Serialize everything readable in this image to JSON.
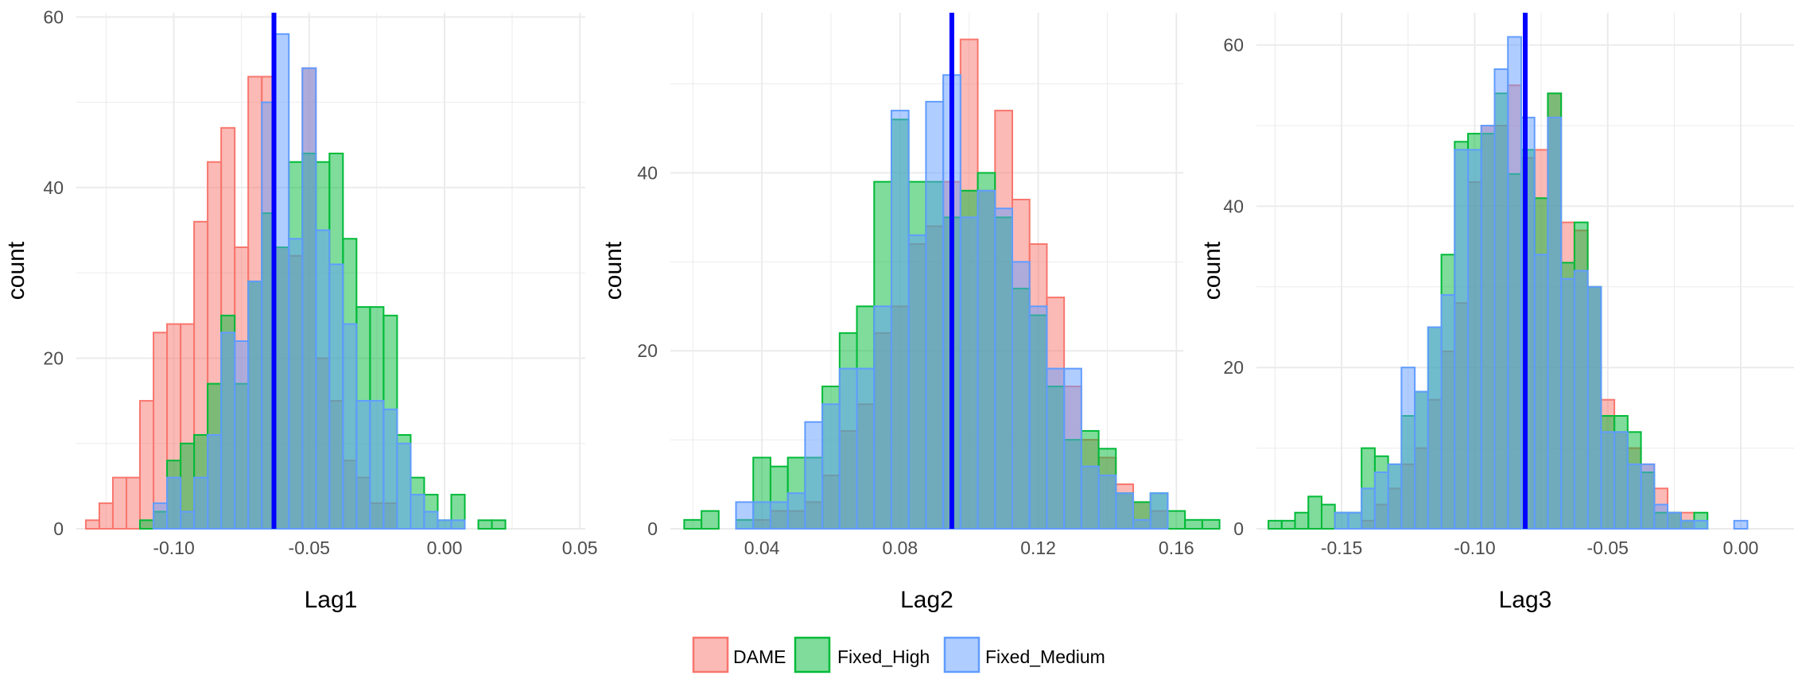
{
  "colors": {
    "DAME": {
      "fill": "#F8766D",
      "stroke": "#F8766D"
    },
    "Fixed_High": {
      "fill": "#00BA38",
      "stroke": "#00BA38"
    },
    "Fixed_Medium": {
      "fill": "#619CFF",
      "stroke": "#619CFF"
    },
    "reference_line": "#0000FF",
    "grid": "#EBEBEB"
  },
  "legend": {
    "placement": "bottom",
    "items": [
      {
        "key": "DAME",
        "label": "DAME"
      },
      {
        "key": "Fixed_High",
        "label": "Fixed_High"
      },
      {
        "key": "Fixed_Medium",
        "label": "Fixed_Medium"
      }
    ]
  },
  "chart_data": [
    {
      "type": "histogram",
      "xlabel": "Lag1",
      "ylabel": "count",
      "xlim": [
        -0.136,
        0.052
      ],
      "ylim": [
        0,
        60.5
      ],
      "x_ticks": [
        -0.1,
        -0.05,
        0.0,
        0.05
      ],
      "x_tick_labels": [
        "-0.10",
        "-0.05",
        "0.00",
        "0.05"
      ],
      "y_ticks": [
        0,
        20,
        40,
        60
      ],
      "y_tick_labels": [
        "0",
        "20",
        "40",
        "60"
      ],
      "grid": true,
      "bin_start": -0.1325,
      "bin_width": 0.005,
      "reference_line": -0.063,
      "series": [
        {
          "name": "DAME",
          "counts": [
            1,
            3,
            6,
            6,
            15,
            23,
            24,
            24,
            36,
            43,
            47,
            33,
            53,
            53,
            33,
            32,
            54,
            20,
            15,
            8,
            6,
            3,
            3,
            0,
            0,
            0,
            0,
            0,
            0,
            0,
            0,
            0,
            0,
            0,
            0
          ]
        },
        {
          "name": "Fixed_High",
          "counts": [
            0,
            0,
            0,
            0,
            1,
            2,
            8,
            10,
            11,
            17,
            25,
            17,
            29,
            37,
            33,
            43,
            44,
            43,
            44,
            34,
            26,
            26,
            25,
            11,
            6,
            4,
            1,
            4,
            0,
            1,
            1,
            0,
            0,
            0,
            0
          ]
        },
        {
          "name": "Fixed_Medium",
          "counts": [
            0,
            0,
            0,
            0,
            0,
            3,
            6,
            2,
            6,
            11,
            23,
            22,
            29,
            50,
            58,
            34,
            54,
            35,
            31,
            24,
            15,
            15,
            14,
            10,
            4,
            2,
            1,
            1,
            0,
            0,
            0,
            0,
            0,
            0,
            0
          ]
        }
      ]
    },
    {
      "type": "histogram",
      "xlabel": "Lag2",
      "ylabel": "count",
      "xlim": [
        0.0135,
        0.162
      ],
      "ylim": [
        0,
        58
      ],
      "x_ticks": [
        0.04,
        0.08,
        0.12,
        0.16
      ],
      "x_tick_labels": [
        "0.04",
        "0.08",
        "0.12",
        "0.16"
      ],
      "y_ticks": [
        0,
        20,
        40
      ],
      "y_tick_labels": [
        "0",
        "20",
        "40"
      ],
      "grid": true,
      "bin_start": 0.0175,
      "bin_width": 0.005,
      "reference_line": 0.095,
      "series": [
        {
          "name": "DAME",
          "counts": [
            0,
            0,
            0,
            0,
            1,
            2,
            2,
            3,
            6,
            11,
            14,
            22,
            25,
            32,
            34,
            39,
            55,
            38,
            47,
            37,
            32,
            26,
            16,
            10,
            8,
            5,
            3,
            2,
            0,
            0,
            0
          ]
        },
        {
          "name": "Fixed_High",
          "counts": [
            1,
            2,
            0,
            1,
            8,
            7,
            8,
            8,
            16,
            22,
            25,
            39,
            46,
            39,
            39,
            35,
            38,
            40,
            35,
            27,
            24,
            16,
            10,
            11,
            9,
            4,
            3,
            4,
            2,
            1,
            1
          ]
        },
        {
          "name": "Fixed_Medium",
          "counts": [
            0,
            0,
            0,
            3,
            3,
            3,
            4,
            12,
            14,
            18,
            18,
            25,
            47,
            33,
            48,
            51,
            35,
            38,
            36,
            30,
            25,
            18,
            18,
            7,
            6,
            4,
            1,
            4,
            0,
            0,
            0
          ]
        }
      ]
    },
    {
      "type": "histogram",
      "xlabel": "Lag3",
      "ylabel": "count",
      "xlim": [
        -0.182,
        0.02
      ],
      "ylim": [
        0,
        64
      ],
      "x_ticks": [
        -0.15,
        -0.1,
        -0.05,
        0.0
      ],
      "x_tick_labels": [
        "-0.15",
        "-0.10",
        "-0.05",
        "0.00"
      ],
      "y_ticks": [
        0,
        20,
        40,
        60
      ],
      "y_tick_labels": [
        "0",
        "20",
        "40",
        "60"
      ],
      "grid": true,
      "bin_start": -0.1775,
      "bin_width": 0.005,
      "reference_line": -0.081,
      "series": [
        {
          "name": "DAME",
          "counts": [
            0,
            0,
            0,
            0,
            0,
            0,
            0,
            1,
            3,
            5,
            8,
            10,
            16,
            22,
            28,
            43,
            50,
            50,
            55,
            46,
            47,
            54,
            38,
            37,
            30,
            16,
            12,
            10,
            8,
            5,
            2,
            2,
            0,
            0,
            0,
            0
          ]
        },
        {
          "name": "Fixed_High",
          "counts": [
            1,
            1,
            2,
            4,
            3,
            2,
            2,
            10,
            9,
            8,
            14,
            17,
            25,
            34,
            48,
            49,
            49,
            54,
            44,
            47,
            41,
            54,
            33,
            38,
            30,
            14,
            14,
            12,
            7,
            2,
            2,
            1,
            2,
            0,
            0,
            0
          ]
        },
        {
          "name": "Fixed_Medium",
          "counts": [
            0,
            0,
            0,
            0,
            0,
            2,
            2,
            5,
            7,
            8,
            20,
            17,
            25,
            29,
            47,
            47,
            50,
            57,
            61,
            51,
            34,
            51,
            31,
            32,
            30,
            12,
            12,
            8,
            8,
            3,
            2,
            1,
            1,
            0,
            0,
            1
          ]
        }
      ]
    }
  ]
}
